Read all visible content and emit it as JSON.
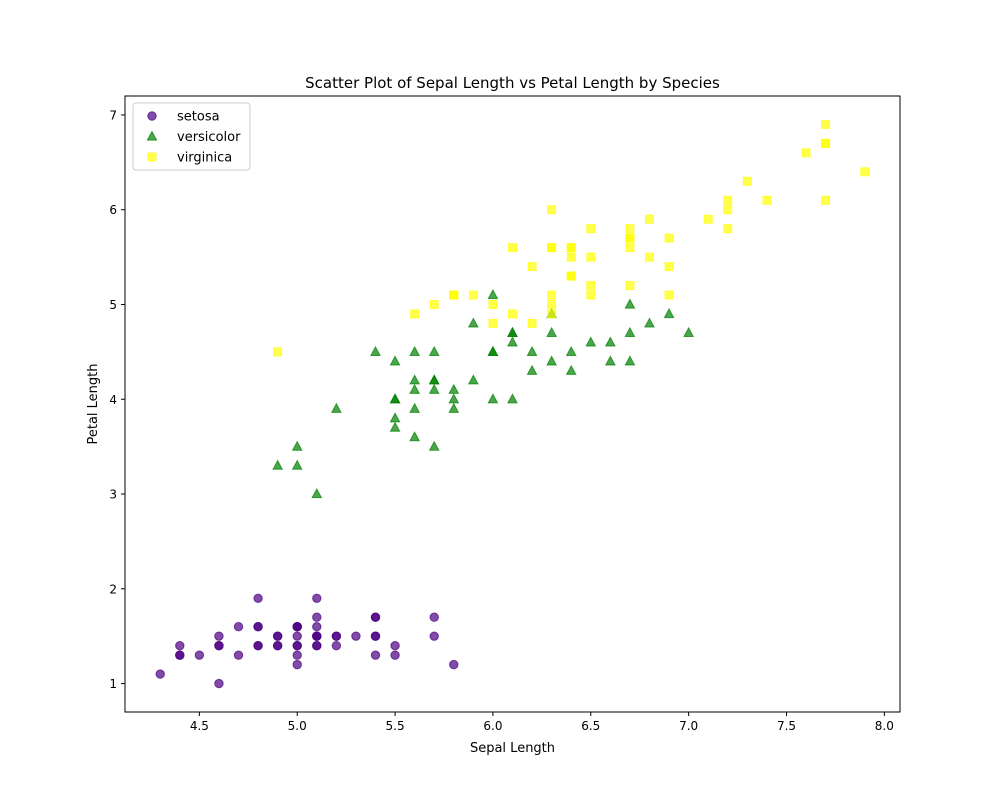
{
  "chart_data": {
    "type": "scatter",
    "title": "Scatter Plot of Sepal Length vs Petal Length by Species",
    "xlabel": "Sepal Length",
    "ylabel": "Petal Length",
    "xlim": [
      4.12,
      8.08
    ],
    "ylim": [
      0.7,
      7.2
    ],
    "xticks": [
      4.5,
      5.0,
      5.5,
      6.0,
      6.5,
      7.0,
      7.5,
      8.0
    ],
    "xtick_labels": [
      "4.5",
      "5.0",
      "5.5",
      "6.0",
      "6.5",
      "7.0",
      "7.5",
      "8.0"
    ],
    "yticks": [
      1,
      2,
      3,
      4,
      5,
      6,
      7
    ],
    "ytick_labels": [
      "1",
      "2",
      "3",
      "4",
      "5",
      "6",
      "7"
    ],
    "grid": false,
    "legend_position": "upper-left",
    "series": [
      {
        "name": "setosa",
        "marker": "circle",
        "color": "#4b0082",
        "alpha": 0.7,
        "points": [
          [
            5.1,
            1.4
          ],
          [
            4.9,
            1.4
          ],
          [
            4.7,
            1.3
          ],
          [
            4.6,
            1.5
          ],
          [
            5.0,
            1.4
          ],
          [
            5.4,
            1.7
          ],
          [
            4.6,
            1.4
          ],
          [
            5.0,
            1.5
          ],
          [
            4.4,
            1.4
          ],
          [
            4.9,
            1.5
          ],
          [
            5.4,
            1.5
          ],
          [
            4.8,
            1.6
          ],
          [
            4.8,
            1.4
          ],
          [
            4.3,
            1.1
          ],
          [
            5.8,
            1.2
          ],
          [
            5.7,
            1.5
          ],
          [
            5.4,
            1.3
          ],
          [
            5.1,
            1.4
          ],
          [
            5.7,
            1.7
          ],
          [
            5.1,
            1.5
          ],
          [
            5.4,
            1.7
          ],
          [
            5.1,
            1.5
          ],
          [
            4.6,
            1.0
          ],
          [
            5.1,
            1.7
          ],
          [
            4.8,
            1.9
          ],
          [
            5.0,
            1.6
          ],
          [
            5.0,
            1.6
          ],
          [
            5.2,
            1.5
          ],
          [
            5.2,
            1.4
          ],
          [
            4.7,
            1.6
          ],
          [
            4.8,
            1.6
          ],
          [
            5.4,
            1.5
          ],
          [
            5.2,
            1.5
          ],
          [
            5.5,
            1.4
          ],
          [
            4.9,
            1.5
          ],
          [
            5.0,
            1.2
          ],
          [
            5.5,
            1.3
          ],
          [
            4.9,
            1.4
          ],
          [
            4.4,
            1.3
          ],
          [
            5.1,
            1.5
          ],
          [
            5.0,
            1.3
          ],
          [
            4.5,
            1.3
          ],
          [
            4.4,
            1.3
          ],
          [
            5.0,
            1.6
          ],
          [
            5.1,
            1.9
          ],
          [
            4.8,
            1.4
          ],
          [
            5.1,
            1.6
          ],
          [
            4.6,
            1.4
          ],
          [
            5.3,
            1.5
          ],
          [
            5.0,
            1.4
          ]
        ]
      },
      {
        "name": "versicolor",
        "marker": "triangle",
        "color": "#008000",
        "alpha": 0.7,
        "points": [
          [
            7.0,
            4.7
          ],
          [
            6.4,
            4.5
          ],
          [
            6.9,
            4.9
          ],
          [
            5.5,
            4.0
          ],
          [
            6.5,
            4.6
          ],
          [
            5.7,
            4.5
          ],
          [
            6.3,
            4.7
          ],
          [
            4.9,
            3.3
          ],
          [
            6.6,
            4.6
          ],
          [
            5.2,
            3.9
          ],
          [
            5.0,
            3.5
          ],
          [
            5.9,
            4.2
          ],
          [
            6.0,
            4.0
          ],
          [
            6.1,
            4.7
          ],
          [
            5.6,
            3.6
          ],
          [
            6.7,
            4.4
          ],
          [
            5.6,
            4.5
          ],
          [
            5.8,
            4.1
          ],
          [
            6.2,
            4.5
          ],
          [
            5.6,
            3.9
          ],
          [
            5.9,
            4.8
          ],
          [
            6.1,
            4.0
          ],
          [
            6.3,
            4.9
          ],
          [
            6.1,
            4.7
          ],
          [
            6.4,
            4.3
          ],
          [
            6.6,
            4.4
          ],
          [
            6.8,
            4.8
          ],
          [
            6.7,
            5.0
          ],
          [
            6.0,
            4.5
          ],
          [
            5.7,
            3.5
          ],
          [
            5.5,
            3.8
          ],
          [
            5.5,
            3.7
          ],
          [
            5.8,
            3.9
          ],
          [
            6.0,
            5.1
          ],
          [
            5.4,
            4.5
          ],
          [
            6.0,
            4.5
          ],
          [
            6.7,
            4.7
          ],
          [
            6.3,
            4.4
          ],
          [
            5.6,
            4.1
          ],
          [
            5.5,
            4.0
          ],
          [
            5.5,
            4.4
          ],
          [
            6.1,
            4.6
          ],
          [
            5.8,
            4.0
          ],
          [
            5.0,
            3.3
          ],
          [
            5.6,
            4.2
          ],
          [
            5.7,
            4.2
          ],
          [
            5.7,
            4.2
          ],
          [
            6.2,
            4.3
          ],
          [
            5.1,
            3.0
          ],
          [
            5.7,
            4.1
          ]
        ]
      },
      {
        "name": "virginica",
        "marker": "square",
        "color": "#ffff00",
        "alpha": 0.7,
        "points": [
          [
            6.3,
            6.0
          ],
          [
            5.8,
            5.1
          ],
          [
            7.1,
            5.9
          ],
          [
            6.3,
            5.6
          ],
          [
            6.5,
            5.8
          ],
          [
            7.6,
            6.6
          ],
          [
            4.9,
            4.5
          ],
          [
            7.3,
            6.3
          ],
          [
            6.7,
            5.8
          ],
          [
            7.2,
            6.1
          ],
          [
            6.5,
            5.1
          ],
          [
            6.4,
            5.3
          ],
          [
            6.8,
            5.5
          ],
          [
            5.7,
            5.0
          ],
          [
            5.8,
            5.1
          ],
          [
            6.4,
            5.3
          ],
          [
            6.5,
            5.5
          ],
          [
            7.7,
            6.7
          ],
          [
            7.7,
            6.9
          ],
          [
            6.0,
            5.0
          ],
          [
            6.9,
            5.7
          ],
          [
            5.6,
            4.9
          ],
          [
            7.7,
            6.7
          ],
          [
            6.3,
            4.9
          ],
          [
            6.7,
            5.7
          ],
          [
            7.2,
            6.0
          ],
          [
            6.2,
            4.8
          ],
          [
            6.1,
            4.9
          ],
          [
            6.4,
            5.6
          ],
          [
            7.2,
            5.8
          ],
          [
            7.4,
            6.1
          ],
          [
            7.9,
            6.4
          ],
          [
            6.4,
            5.6
          ],
          [
            6.3,
            5.1
          ],
          [
            6.1,
            5.6
          ],
          [
            7.7,
            6.1
          ],
          [
            6.3,
            5.6
          ],
          [
            6.4,
            5.5
          ],
          [
            6.0,
            4.8
          ],
          [
            6.9,
            5.4
          ],
          [
            6.7,
            5.6
          ],
          [
            6.9,
            5.1
          ],
          [
            5.8,
            5.1
          ],
          [
            6.8,
            5.9
          ],
          [
            6.7,
            5.7
          ],
          [
            6.7,
            5.2
          ],
          [
            6.3,
            5.0
          ],
          [
            6.5,
            5.2
          ],
          [
            6.2,
            5.4
          ],
          [
            5.9,
            5.1
          ]
        ]
      }
    ]
  }
}
